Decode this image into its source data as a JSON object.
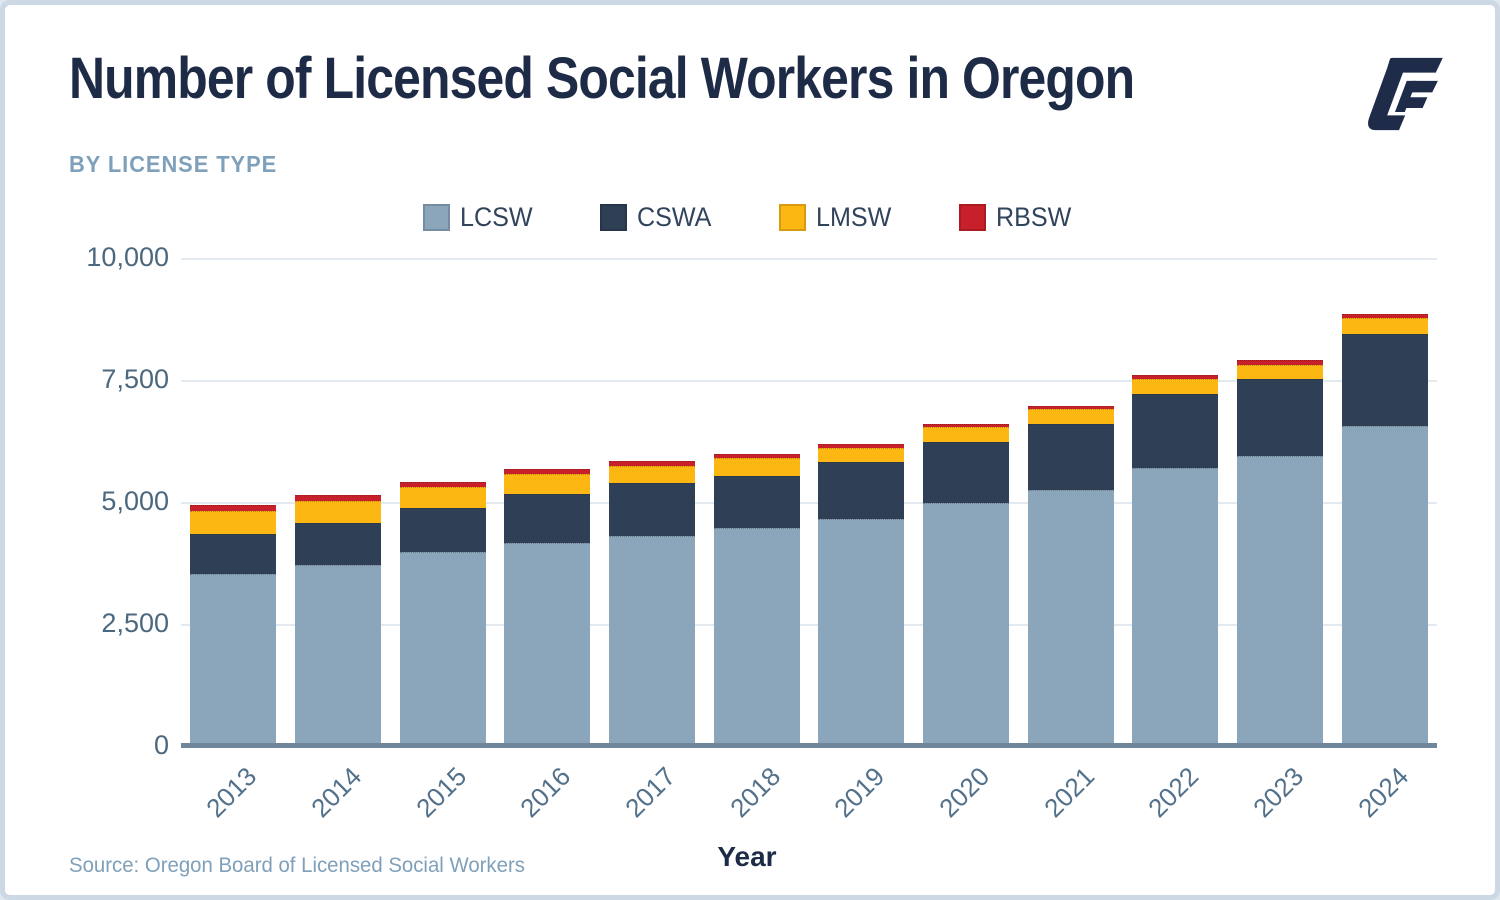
{
  "header": {
    "title": "Number of Licensed Social Workers in Oregon",
    "subtitle": "BY LICENSE TYPE"
  },
  "footer": {
    "source": "Source: Oregon Board of Licensed Social Workers"
  },
  "colors": {
    "title_navy": "#1e2b47",
    "steel_blue_text": "#7fa0ba",
    "axis_text": "#4c687f",
    "gridline": "#e2e9f0",
    "baseline": "#70879b",
    "frame_border": "#ccd8e4",
    "logo_navy": "#1f2c49"
  },
  "icons": {
    "brand_logo": "gf-monogram-icon"
  },
  "chart_data": {
    "type": "bar",
    "stacked": true,
    "title": "Number of Licensed Social Workers in Oregon",
    "subtitle": "BY LICENSE TYPE",
    "xlabel": "Year",
    "ylabel": "",
    "ylim": [
      0,
      10000
    ],
    "grid": true,
    "legend_position": "top",
    "categories": [
      "2013",
      "2014",
      "2015",
      "2016",
      "2017",
      "2018",
      "2019",
      "2020",
      "2021",
      "2022",
      "2023",
      "2024"
    ],
    "yticks": [
      {
        "value": 0,
        "label": "0"
      },
      {
        "value": 2500,
        "label": "2,500"
      },
      {
        "value": 5000,
        "label": "5,000"
      },
      {
        "value": 7500,
        "label": "7,500"
      },
      {
        "value": 10000,
        "label": "10,000"
      }
    ],
    "series": [
      {
        "name": "LCSW",
        "color": "#8ba6bb",
        "values": [
          3550,
          3730,
          4000,
          4180,
          4320,
          4490,
          4670,
          5000,
          5270,
          5720,
          5960,
          6580
        ]
      },
      {
        "name": "CSWA",
        "color": "#2e3f56",
        "values": [
          820,
          860,
          900,
          1000,
          1090,
          1070,
          1170,
          1250,
          1350,
          1520,
          1580,
          1890
        ]
      },
      {
        "name": "LMSW",
        "color": "#fcb713",
        "values": [
          470,
          450,
          430,
          410,
          350,
          370,
          290,
          300,
          310,
          300,
          290,
          330
        ]
      },
      {
        "name": "RBSW",
        "color": "#c8202a",
        "values": [
          120,
          120,
          100,
          100,
          100,
          80,
          80,
          70,
          60,
          80,
          100,
          70
        ]
      }
    ],
    "totals_approx": [
      4960,
      5160,
      5430,
      5690,
      5860,
      6010,
      6210,
      6620,
      6990,
      7620,
      7930,
      8870
    ]
  }
}
